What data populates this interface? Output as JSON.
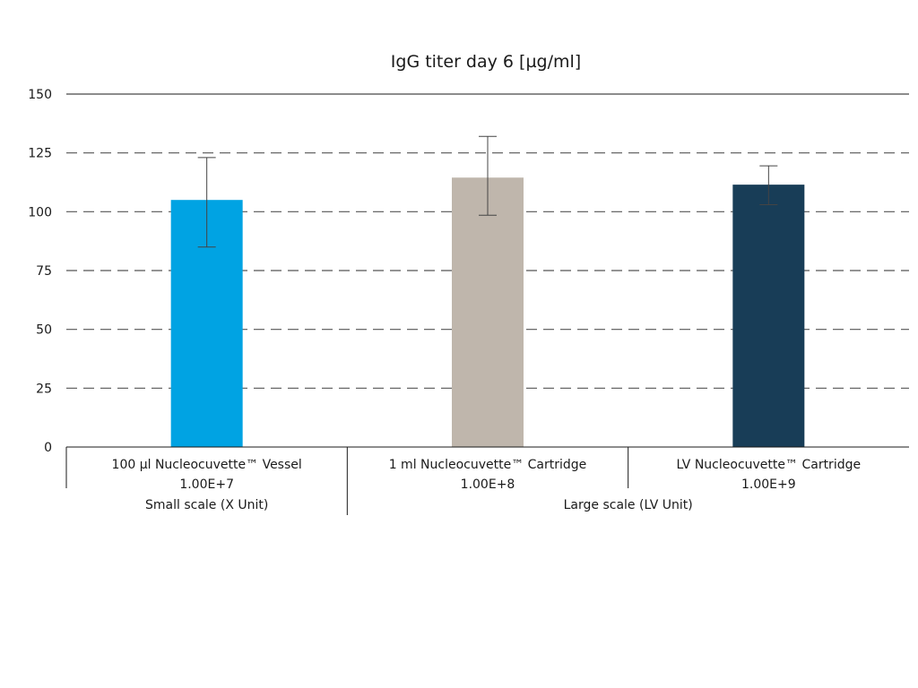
{
  "chart_data": {
    "type": "bar",
    "title": "IgG titer day 6 [µg/ml]",
    "xlabel": "",
    "ylabel": "",
    "ylim": [
      0,
      150
    ],
    "yticks": [
      0,
      25,
      50,
      75,
      100,
      125,
      150
    ],
    "grid": "dashed horizontal",
    "legend": "none",
    "categories": [
      {
        "name": "100 µl Nucleocuvette™ Vessel",
        "sub": "1.00E+7",
        "value": 105,
        "err_low": 85,
        "err_high": 123,
        "color": "#00a3e3"
      },
      {
        "name": "1 ml Nucleocuvette™ Cartridge",
        "sub": "1.00E+8",
        "value": 114.5,
        "err_low": 98.5,
        "err_high": 132,
        "color": "#bfb6ac"
      },
      {
        "name": "LV Nucleocuvette™ Cartridge",
        "sub": "1.00E+9",
        "value": 111.5,
        "err_low": 103,
        "err_high": 119.5,
        "color": "#183d57"
      }
    ],
    "groups": [
      {
        "label": "Small scale (X Unit)",
        "span": 1
      },
      {
        "label": "Large scale (LV Unit)",
        "span": 2
      }
    ]
  }
}
